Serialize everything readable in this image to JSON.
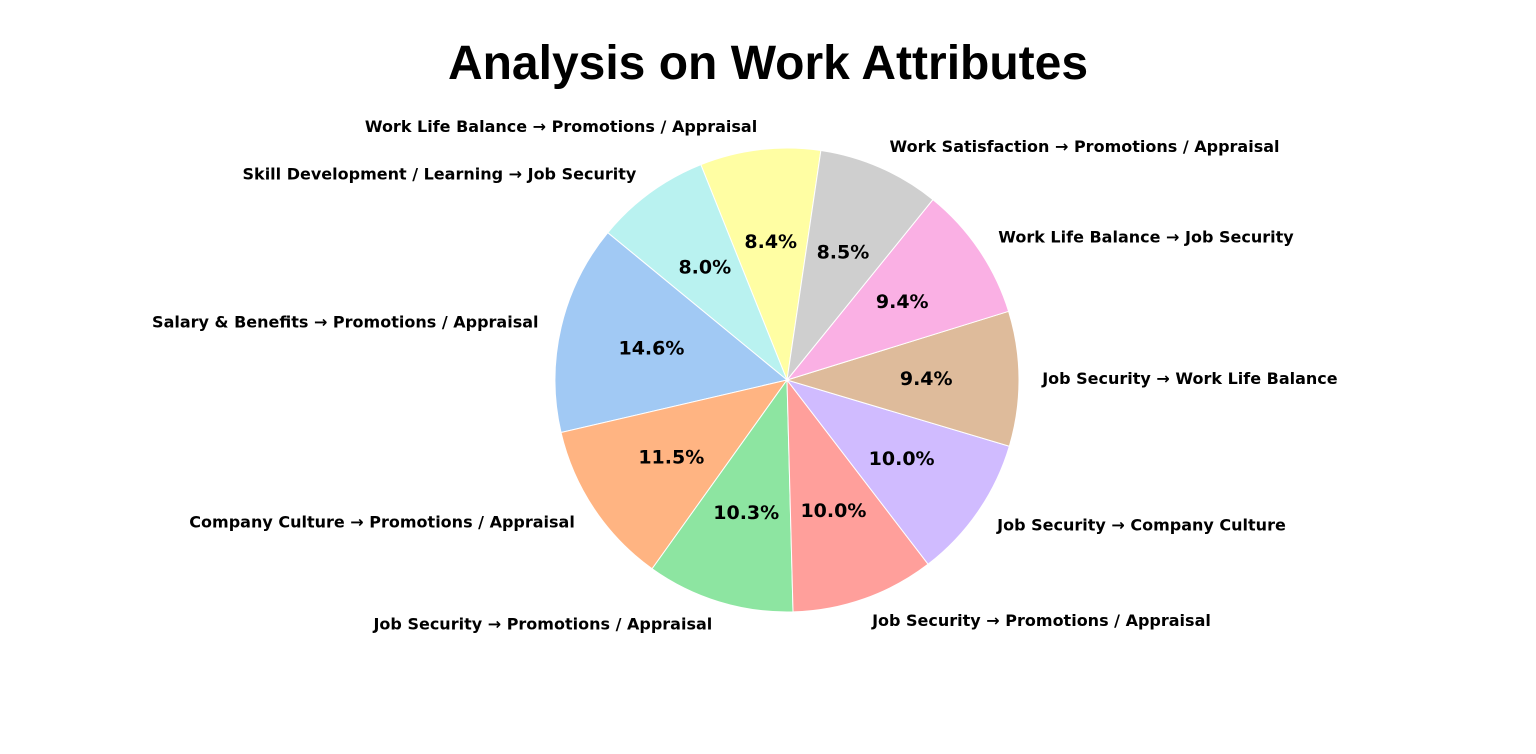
{
  "chart_data": {
    "type": "pie",
    "title": "Analysis on Work Attributes",
    "slices": [
      {
        "label": "Work Life Balance → Promotions / Appraisal",
        "value": 8.4,
        "pct_label": "8.4%",
        "color": "#fffea3"
      },
      {
        "label": "Skill Development / Learning → Job Security",
        "value": 8.0,
        "pct_label": "8.0%",
        "color": "#b9f2f0"
      },
      {
        "label": "Salary & Benefits → Promotions / Appraisal",
        "value": 14.6,
        "pct_label": "14.6%",
        "color": "#a1c9f4"
      },
      {
        "label": "Company Culture → Promotions / Appraisal",
        "value": 11.5,
        "pct_label": "11.5%",
        "color": "#ffb482"
      },
      {
        "label": "Job Security → Promotions / Appraisal",
        "value": 10.3,
        "pct_label": "10.3%",
        "color": "#8de5a1"
      },
      {
        "label": "Job Security → Promotions / Appraisal",
        "value": 10.0,
        "pct_label": "10.0%",
        "color": "#ff9f9b"
      },
      {
        "label": "Job Security →  Company Culture",
        "value": 10.0,
        "pct_label": "10.0%",
        "color": "#d0bbff"
      },
      {
        "label": "Job Security →  Work Life Balance",
        "value": 9.4,
        "pct_label": "9.4%",
        "color": "#debb9b"
      },
      {
        "label": "Work Life Balance → Job Security",
        "value": 9.4,
        "pct_label": "9.4%",
        "color": "#fab0e4"
      },
      {
        "label": "Work Satisfaction → Promotions / Appraisal",
        "value": 8.5,
        "pct_label": "8.5%",
        "color": "#cfcfcf"
      }
    ]
  }
}
